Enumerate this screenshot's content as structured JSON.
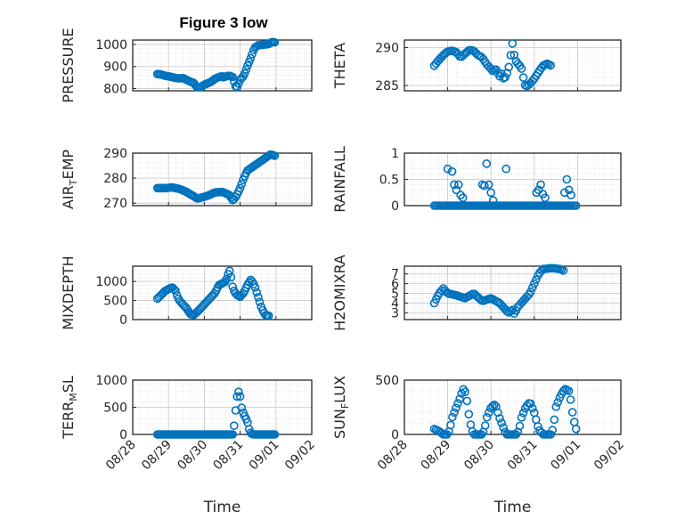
{
  "figure": {
    "title": "Figure 3 low",
    "colors": {
      "marker": "#0072BD",
      "axes": "#262626",
      "grid": "#d9d9d9",
      "background": "#ffffff"
    },
    "x_tick_labels": [
      "08/28",
      "08/29",
      "08/30",
      "08/31",
      "09/01",
      "09/02"
    ],
    "x_label": "Time"
  },
  "chart_data": [
    {
      "type": "scatter",
      "ylabel": "PRESSURE",
      "ylim": [
        790,
        1020
      ],
      "yticks": [
        800,
        900,
        1000
      ],
      "grid": true,
      "keys": [
        [
          0.69,
          866
        ],
        [
          0.8,
          864
        ],
        [
          0.9,
          858
        ],
        [
          1.0,
          856
        ],
        [
          1.1,
          852
        ],
        [
          1.2,
          848
        ],
        [
          1.3,
          846
        ],
        [
          1.4,
          848
        ],
        [
          1.5,
          840
        ],
        [
          1.6,
          832
        ],
        [
          1.7,
          826
        ],
        [
          1.8,
          806
        ],
        [
          1.9,
          806
        ],
        [
          2.0,
          818
        ],
        [
          2.1,
          824
        ],
        [
          2.2,
          832
        ],
        [
          2.3,
          845
        ],
        [
          2.4,
          852
        ],
        [
          2.5,
          856
        ],
        [
          2.55,
          850
        ],
        [
          2.6,
          856
        ],
        [
          2.7,
          858
        ],
        [
          2.8,
          852
        ],
        [
          2.85,
          820
        ],
        [
          2.9,
          800
        ],
        [
          2.95,
          820
        ],
        [
          3.0,
          840
        ],
        [
          3.1,
          858
        ],
        [
          3.2,
          900
        ],
        [
          3.3,
          940
        ],
        [
          3.4,
          985
        ],
        [
          3.5,
          996
        ],
        [
          3.6,
          998
        ],
        [
          3.7,
          1000
        ],
        [
          3.8,
          1002
        ],
        [
          3.9,
          1012
        ],
        [
          4.0,
          1008
        ]
      ]
    },
    {
      "type": "scatter",
      "ylabel": "THETA",
      "ylim": [
        284.3,
        291
      ],
      "yticks": [
        285,
        290
      ],
      "grid": true,
      "keys": [
        [
          0.69,
          287.6
        ],
        [
          0.8,
          288.4
        ],
        [
          0.9,
          289.0
        ],
        [
          1.0,
          289.5
        ],
        [
          1.1,
          289.6
        ],
        [
          1.2,
          289.4
        ],
        [
          1.3,
          288.7
        ],
        [
          1.4,
          289.2
        ],
        [
          1.5,
          289.7
        ],
        [
          1.6,
          289.6
        ],
        [
          1.7,
          289.0
        ],
        [
          1.8,
          288.7
        ],
        [
          1.9,
          287.8
        ],
        [
          2.0,
          287.2
        ],
        [
          2.05,
          286.8
        ],
        [
          2.1,
          287.3
        ],
        [
          2.2,
          286.2
        ],
        [
          2.25,
          286.6
        ],
        [
          2.3,
          285.7
        ],
        [
          2.35,
          286.4
        ],
        [
          2.4,
          287.0
        ],
        [
          2.5,
          290.7
        ],
        [
          2.55,
          288.5
        ],
        [
          2.6,
          288.0
        ],
        [
          2.7,
          287.4
        ],
        [
          2.75,
          286.0
        ],
        [
          2.8,
          284.8
        ],
        [
          2.9,
          285.2
        ],
        [
          3.0,
          285.9
        ],
        [
          3.1,
          286.8
        ],
        [
          3.2,
          287.6
        ],
        [
          3.3,
          287.9
        ],
        [
          3.4,
          287.6
        ]
      ]
    },
    {
      "type": "scatter",
      "ylabel": "AIR_TEMP",
      "ylim": [
        269,
        290
      ],
      "yticks": [
        270,
        280,
        290
      ],
      "grid": true,
      "keys": [
        [
          0.69,
          276.0
        ],
        [
          0.9,
          276.0
        ],
        [
          1.1,
          276.3
        ],
        [
          1.3,
          275.7
        ],
        [
          1.5,
          274.5
        ],
        [
          1.7,
          272.8
        ],
        [
          1.8,
          271.8
        ],
        [
          1.95,
          272.3
        ],
        [
          2.1,
          273.0
        ],
        [
          2.3,
          274.3
        ],
        [
          2.5,
          274.5
        ],
        [
          2.7,
          273.3
        ],
        [
          2.8,
          271.0
        ],
        [
          2.9,
          273.0
        ],
        [
          3.0,
          276.0
        ],
        [
          3.1,
          280.0
        ],
        [
          3.2,
          283.0
        ],
        [
          3.3,
          284.0
        ],
        [
          3.5,
          286.0
        ],
        [
          3.7,
          288.0
        ],
        [
          3.85,
          289.5
        ],
        [
          4.0,
          288.8
        ]
      ]
    },
    {
      "type": "scatter",
      "ylabel": "RAINFALL",
      "ylim": [
        0,
        1
      ],
      "yticks": [
        0,
        0.5,
        1
      ],
      "tick_labels": [
        "0",
        "0.5",
        "1"
      ],
      "grid": true,
      "keys": [
        [
          0.69,
          0
        ],
        [
          4.0,
          0
        ]
      ],
      "spikes": [
        [
          1.0,
          0.7
        ],
        [
          1.1,
          0.65
        ],
        [
          1.15,
          0.4
        ],
        [
          1.2,
          0.3
        ],
        [
          1.25,
          0.4
        ],
        [
          1.3,
          0.2
        ],
        [
          1.35,
          0.15
        ],
        [
          1.8,
          0.4
        ],
        [
          1.85,
          0.38
        ],
        [
          1.9,
          0.8
        ],
        [
          1.95,
          0.4
        ],
        [
          2.0,
          0.25
        ],
        [
          2.05,
          0.1
        ],
        [
          2.35,
          0.7
        ],
        [
          3.05,
          0.25
        ],
        [
          3.1,
          0.3
        ],
        [
          3.15,
          0.4
        ],
        [
          3.2,
          0.22
        ],
        [
          3.25,
          0.15
        ],
        [
          3.7,
          0.25
        ],
        [
          3.75,
          0.5
        ],
        [
          3.8,
          0.3
        ],
        [
          3.85,
          0.2
        ]
      ]
    },
    {
      "type": "scatter",
      "ylabel": "MIXDEPTH",
      "ylim": [
        0,
        1400
      ],
      "yticks": [
        0,
        500,
        1000
      ],
      "grid": true,
      "keys": [
        [
          0.69,
          550
        ],
        [
          0.8,
          650
        ],
        [
          0.9,
          750
        ],
        [
          1.0,
          800
        ],
        [
          1.1,
          850
        ],
        [
          1.2,
          750
        ],
        [
          1.25,
          600
        ],
        [
          1.3,
          500
        ],
        [
          1.4,
          400
        ],
        [
          1.5,
          300
        ],
        [
          1.6,
          150
        ],
        [
          1.7,
          120
        ],
        [
          1.8,
          200
        ],
        [
          1.9,
          300
        ],
        [
          2.0,
          400
        ],
        [
          2.1,
          500
        ],
        [
          2.2,
          600
        ],
        [
          2.3,
          700
        ],
        [
          2.4,
          900
        ],
        [
          2.5,
          950
        ],
        [
          2.6,
          1000
        ],
        [
          2.7,
          1300
        ],
        [
          2.75,
          1100
        ],
        [
          2.8,
          800
        ],
        [
          2.9,
          650
        ],
        [
          3.0,
          600
        ],
        [
          3.1,
          700
        ],
        [
          3.2,
          900
        ],
        [
          3.3,
          1050
        ],
        [
          3.4,
          900
        ],
        [
          3.5,
          600
        ],
        [
          3.6,
          300
        ],
        [
          3.7,
          120
        ],
        [
          3.8,
          100
        ]
      ]
    },
    {
      "type": "scatter",
      "ylabel": "H2OMIXRA",
      "ylim": [
        2.3,
        7.8
      ],
      "yticks": [
        3,
        4,
        5,
        6,
        7
      ],
      "grid": true,
      "keys": [
        [
          0.69,
          4.0
        ],
        [
          0.8,
          5.0
        ],
        [
          0.9,
          5.5
        ],
        [
          1.0,
          5.0
        ],
        [
          1.2,
          4.8
        ],
        [
          1.4,
          4.5
        ],
        [
          1.6,
          5.0
        ],
        [
          1.8,
          4.2
        ],
        [
          2.0,
          4.5
        ],
        [
          2.2,
          4.0
        ],
        [
          2.3,
          3.5
        ],
        [
          2.4,
          3.0
        ],
        [
          2.5,
          3.3
        ],
        [
          2.55,
          2.8
        ],
        [
          2.6,
          3.5
        ],
        [
          2.7,
          4.0
        ],
        [
          2.8,
          4.5
        ],
        [
          2.9,
          5.0
        ],
        [
          3.0,
          6.0
        ],
        [
          3.1,
          7.0
        ],
        [
          3.2,
          7.5
        ],
        [
          3.4,
          7.6
        ],
        [
          3.6,
          7.5
        ],
        [
          3.7,
          7.3
        ]
      ]
    },
    {
      "type": "scatter",
      "ylabel": "TERR_MSL",
      "ylim": [
        0,
        1000
      ],
      "yticks": [
        0,
        500,
        1000
      ],
      "grid": true,
      "keys": [
        [
          0.69,
          0
        ],
        [
          2.8,
          0
        ],
        [
          2.85,
          250
        ],
        [
          2.9,
          650
        ],
        [
          2.95,
          800
        ],
        [
          3.0,
          700
        ],
        [
          3.05,
          450
        ],
        [
          3.1,
          380
        ],
        [
          3.15,
          300
        ],
        [
          3.2,
          250
        ],
        [
          3.25,
          100
        ],
        [
          3.3,
          20
        ],
        [
          3.35,
          0
        ],
        [
          4.0,
          0
        ]
      ]
    },
    {
      "type": "scatter",
      "ylabel": "SUN_FLUX",
      "ylim": [
        0,
        500
      ],
      "yticks": [
        0,
        500
      ],
      "grid": true,
      "keys": [
        [
          0.69,
          50
        ],
        [
          0.8,
          30
        ],
        [
          0.9,
          0
        ],
        [
          1.0,
          0
        ],
        [
          1.05,
          50
        ],
        [
          1.1,
          150
        ],
        [
          1.2,
          250
        ],
        [
          1.3,
          350
        ],
        [
          1.35,
          420
        ],
        [
          1.4,
          400
        ],
        [
          1.45,
          300
        ],
        [
          1.5,
          150
        ],
        [
          1.55,
          50
        ],
        [
          1.6,
          0
        ],
        [
          1.8,
          0
        ],
        [
          1.85,
          50
        ],
        [
          1.9,
          150
        ],
        [
          2.0,
          250
        ],
        [
          2.1,
          280
        ],
        [
          2.2,
          150
        ],
        [
          2.3,
          50
        ],
        [
          2.35,
          0
        ],
        [
          2.6,
          0
        ],
        [
          2.65,
          50
        ],
        [
          2.7,
          150
        ],
        [
          2.8,
          250
        ],
        [
          2.9,
          300
        ],
        [
          3.0,
          200
        ],
        [
          3.1,
          50
        ],
        [
          3.2,
          0
        ],
        [
          3.4,
          0
        ],
        [
          3.45,
          100
        ],
        [
          3.5,
          250
        ],
        [
          3.6,
          350
        ],
        [
          3.7,
          420
        ],
        [
          3.8,
          400
        ],
        [
          3.85,
          300
        ],
        [
          3.9,
          150
        ],
        [
          4.0,
          0
        ]
      ]
    }
  ]
}
